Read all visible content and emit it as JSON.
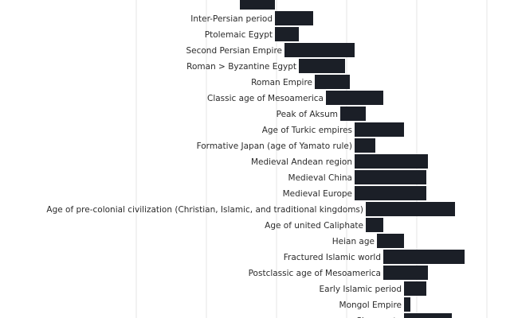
{
  "chart_data": {
    "type": "bar",
    "orientation": "horizontal-timeline",
    "grid": true,
    "bar_color": "#1b1f27",
    "grid_color": "#e4e4e4",
    "categories": [
      "",
      "Inter-Persian period",
      "Ptolemaic Egypt",
      "Second Persian Empire",
      "Roman > Byzantine Egypt",
      "Roman Empire",
      "Classic age of Mesoamerica",
      "Peak of Aksum",
      "Age of Turkic empires",
      "Formative Japan (age of Yamato rule)",
      "Medieval Andean region",
      "Medieval China",
      "Medieval Europe",
      "Age of pre-colonial civilization (Christian, Islamic, and traditional kingdoms)",
      "Age of united Caliphate",
      "Heian age",
      "Fractured Islamic world",
      "Postclassic age of Mesoamerica",
      "Early Islamic period",
      "Mongol Empire",
      "Shogunate"
    ],
    "bars": [
      {
        "start": -550,
        "end": -330
      },
      {
        "start": -330,
        "end": -90
      },
      {
        "start": -330,
        "end": -180
      },
      {
        "start": -270,
        "end": 170
      },
      {
        "start": -180,
        "end": 110
      },
      {
        "start": -80,
        "end": 140
      },
      {
        "start": -10,
        "end": 350
      },
      {
        "start": 80,
        "end": 240
      },
      {
        "start": 170,
        "end": 480
      },
      {
        "start": 170,
        "end": 300
      },
      {
        "start": 170,
        "end": 630
      },
      {
        "start": 170,
        "end": 620
      },
      {
        "start": 170,
        "end": 620
      },
      {
        "start": 240,
        "end": 800
      },
      {
        "start": 240,
        "end": 350
      },
      {
        "start": 310,
        "end": 480
      },
      {
        "start": 350,
        "end": 860
      },
      {
        "start": 350,
        "end": 630
      },
      {
        "start": 480,
        "end": 620
      },
      {
        "start": 480,
        "end": 520
      },
      {
        "start": 480,
        "end": 780
      }
    ]
  }
}
